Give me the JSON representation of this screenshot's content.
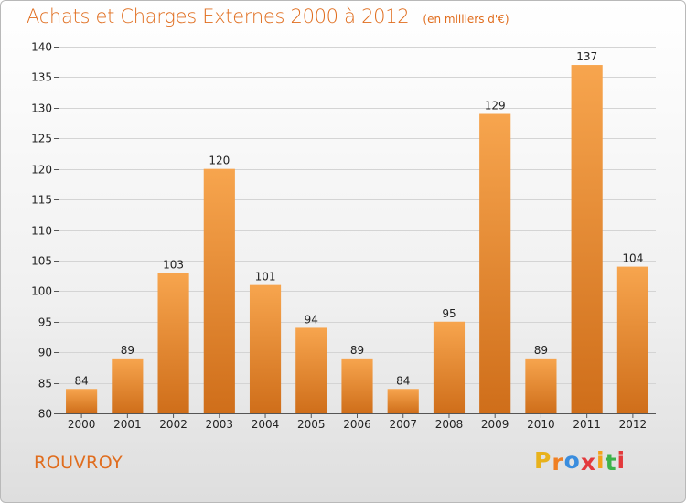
{
  "header": {
    "title": "Achats et Charges Externes 2000 à 2012",
    "unit": "(en milliers d'€)"
  },
  "footer": {
    "town": "ROUVROY",
    "logo": {
      "letters": [
        "P",
        "r",
        "o",
        "x",
        "i",
        "t",
        "i"
      ],
      "colors": [
        "#e8b21c",
        "#f07f22",
        "#3a8dde",
        "#e3393c",
        "#f3a21a",
        "#3db34a",
        "#e3393c"
      ]
    }
  },
  "colors": {
    "bar_light": "#f7a54e",
    "bar_dark": "#cf6e1a",
    "accent": "#e06d1e",
    "grid": "#d4d4d4",
    "axis": "#555555"
  },
  "chart_data": {
    "type": "bar",
    "title": "Achats et Charges Externes 2000 à 2012",
    "subtitle": "(en milliers d'€)",
    "xlabel": "",
    "ylabel": "",
    "categories": [
      "2000",
      "2001",
      "2002",
      "2003",
      "2004",
      "2005",
      "2006",
      "2007",
      "2008",
      "2009",
      "2010",
      "2011",
      "2012"
    ],
    "values": [
      84,
      89,
      103,
      120,
      101,
      94,
      89,
      84,
      95,
      129,
      89,
      137,
      104
    ],
    "ylim": [
      80,
      140
    ],
    "yticks": [
      80,
      85,
      90,
      95,
      100,
      105,
      110,
      115,
      120,
      125,
      130,
      135,
      140
    ],
    "grid": true,
    "data_labels": true,
    "legend": "none"
  }
}
